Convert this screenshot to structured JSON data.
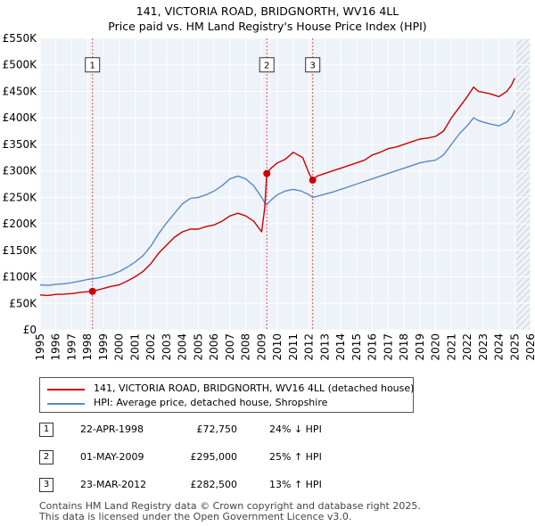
{
  "chart_data": {
    "type": "line",
    "title": "141, VICTORIA ROAD, BRIDGNORTH, WV16 4LL",
    "subtitle": "Price paid vs. HM Land Registry's House Price Index (HPI)",
    "xlabel": "",
    "ylabel": "",
    "xlim": [
      1995,
      2026
    ],
    "ylim": [
      0,
      550000
    ],
    "x_ticks": [
      "1995",
      "1996",
      "1997",
      "1998",
      "1999",
      "2000",
      "2001",
      "2002",
      "2003",
      "2004",
      "2005",
      "2006",
      "2007",
      "2008",
      "2009",
      "2010",
      "2011",
      "2012",
      "2013",
      "2014",
      "2015",
      "2016",
      "2017",
      "2018",
      "2019",
      "2020",
      "2021",
      "2022",
      "2023",
      "2024",
      "2025",
      "2026"
    ],
    "y_ticks": [
      {
        "value": 0,
        "label": "£0"
      },
      {
        "value": 50000,
        "label": "£50K"
      },
      {
        "value": 100000,
        "label": "£100K"
      },
      {
        "value": 150000,
        "label": "£150K"
      },
      {
        "value": 200000,
        "label": "£200K"
      },
      {
        "value": 250000,
        "label": "£250K"
      },
      {
        "value": 300000,
        "label": "£300K"
      },
      {
        "value": 350000,
        "label": "£350K"
      },
      {
        "value": 400000,
        "label": "£400K"
      },
      {
        "value": 450000,
        "label": "£450K"
      },
      {
        "value": 500000,
        "label": "£500K"
      },
      {
        "value": 550000,
        "label": "£550K"
      }
    ],
    "grid": true,
    "hatched_from": 2025.1,
    "series": [
      {
        "name": "141, VICTORIA ROAD, BRIDGNORTH, WV16 4LL (detached house)",
        "color": "#cc0000",
        "x": [
          1995.0,
          1995.5,
          1996.0,
          1996.5,
          1997.0,
          1997.5,
          1998.0,
          1998.31,
          1998.6,
          1999.0,
          1999.5,
          2000.0,
          2000.5,
          2001.0,
          2001.5,
          2002.0,
          2002.5,
          2003.0,
          2003.5,
          2004.0,
          2004.5,
          2005.0,
          2005.5,
          2006.0,
          2006.5,
          2007.0,
          2007.5,
          2008.0,
          2008.5,
          2009.0,
          2009.2,
          2009.33,
          2009.6,
          2010.0,
          2010.5,
          2011.0,
          2011.3,
          2011.6,
          2011.8,
          2012.0,
          2012.23,
          2012.5,
          2013.0,
          2013.5,
          2014.0,
          2014.5,
          2015.0,
          2015.5,
          2016.0,
          2016.5,
          2017.0,
          2017.5,
          2018.0,
          2018.5,
          2019.0,
          2019.5,
          2020.0,
          2020.5,
          2021.0,
          2021.5,
          2022.0,
          2022.4,
          2022.7,
          2023.0,
          2023.5,
          2024.0,
          2024.5,
          2024.8,
          2025.0
        ],
        "values": [
          66000,
          65000,
          67000,
          67500,
          68500,
          70500,
          72000,
          72750,
          75000,
          78000,
          82000,
          85000,
          92000,
          100000,
          110000,
          125000,
          145000,
          160000,
          175000,
          185000,
          190000,
          190000,
          195000,
          198000,
          205000,
          215000,
          220000,
          215000,
          205000,
          185000,
          230000,
          295000,
          305000,
          315000,
          322000,
          335000,
          330000,
          325000,
          310000,
          295000,
          282500,
          290000,
          295000,
          300000,
          305000,
          310000,
          315000,
          320000,
          330000,
          335000,
          342000,
          345000,
          350000,
          355000,
          360000,
          362000,
          365000,
          375000,
          400000,
          420000,
          440000,
          458000,
          450000,
          448000,
          445000,
          440000,
          450000,
          462000,
          475000
        ]
      },
      {
        "name": "HPI: Average price, detached house, Shropshire",
        "color": "#5a8ac6",
        "x": [
          1995.0,
          1995.5,
          1996.0,
          1996.5,
          1997.0,
          1997.5,
          1998.0,
          1998.5,
          1999.0,
          1999.5,
          2000.0,
          2000.5,
          2001.0,
          2001.5,
          2002.0,
          2002.5,
          2003.0,
          2003.5,
          2004.0,
          2004.5,
          2005.0,
          2005.5,
          2006.0,
          2006.5,
          2007.0,
          2007.5,
          2008.0,
          2008.5,
          2009.0,
          2009.2,
          2009.33,
          2009.6,
          2010.0,
          2010.5,
          2011.0,
          2011.5,
          2012.0,
          2012.23,
          2012.5,
          2013.0,
          2013.5,
          2014.0,
          2014.5,
          2015.0,
          2015.5,
          2016.0,
          2016.5,
          2017.0,
          2017.5,
          2018.0,
          2018.5,
          2019.0,
          2019.5,
          2020.0,
          2020.5,
          2021.0,
          2021.5,
          2022.0,
          2022.4,
          2022.7,
          2023.0,
          2023.5,
          2024.0,
          2024.5,
          2024.8,
          2025.0
        ],
        "values": [
          85000,
          84000,
          86000,
          87000,
          89000,
          92000,
          95000,
          97000,
          100000,
          104000,
          110000,
          118000,
          128000,
          140000,
          158000,
          182000,
          202000,
          220000,
          238000,
          248000,
          250000,
          255000,
          262000,
          272000,
          285000,
          290000,
          285000,
          272000,
          250000,
          240000,
          236000,
          245000,
          255000,
          262000,
          265000,
          262000,
          255000,
          250000,
          252000,
          256000,
          260000,
          265000,
          270000,
          275000,
          280000,
          285000,
          290000,
          295000,
          300000,
          305000,
          310000,
          315000,
          318000,
          320000,
          330000,
          350000,
          370000,
          385000,
          400000,
          395000,
          392000,
          388000,
          385000,
          392000,
          402000,
          415000
        ]
      }
    ],
    "sales": [
      {
        "label": "1",
        "x": 1998.31,
        "value": 72750
      },
      {
        "label": "2",
        "x": 2009.33,
        "value": 295000
      },
      {
        "label": "3",
        "x": 2012.23,
        "value": 282500
      }
    ],
    "marker_box_values": [
      500000,
      500000,
      500000
    ]
  },
  "legend": {
    "items": [
      {
        "label": "141, VICTORIA ROAD, BRIDGNORTH, WV16 4LL (detached house)",
        "color": "#cc0000"
      },
      {
        "label": "HPI: Average price, detached house, Shropshire",
        "color": "#5a8ac6"
      }
    ]
  },
  "transactions": [
    {
      "num": "1",
      "date": "22-APR-1998",
      "price": "£72,750",
      "change": "24% ↓ HPI"
    },
    {
      "num": "2",
      "date": "01-MAY-2009",
      "price": "£295,000",
      "change": "25% ↑ HPI"
    },
    {
      "num": "3",
      "date": "23-MAR-2012",
      "price": "£282,500",
      "change": "13% ↑ HPI"
    }
  ],
  "footer": {
    "line1": "Contains HM Land Registry data © Crown copyright and database right 2025.",
    "line2": "This data is licensed under the Open Government Licence v3.0."
  }
}
